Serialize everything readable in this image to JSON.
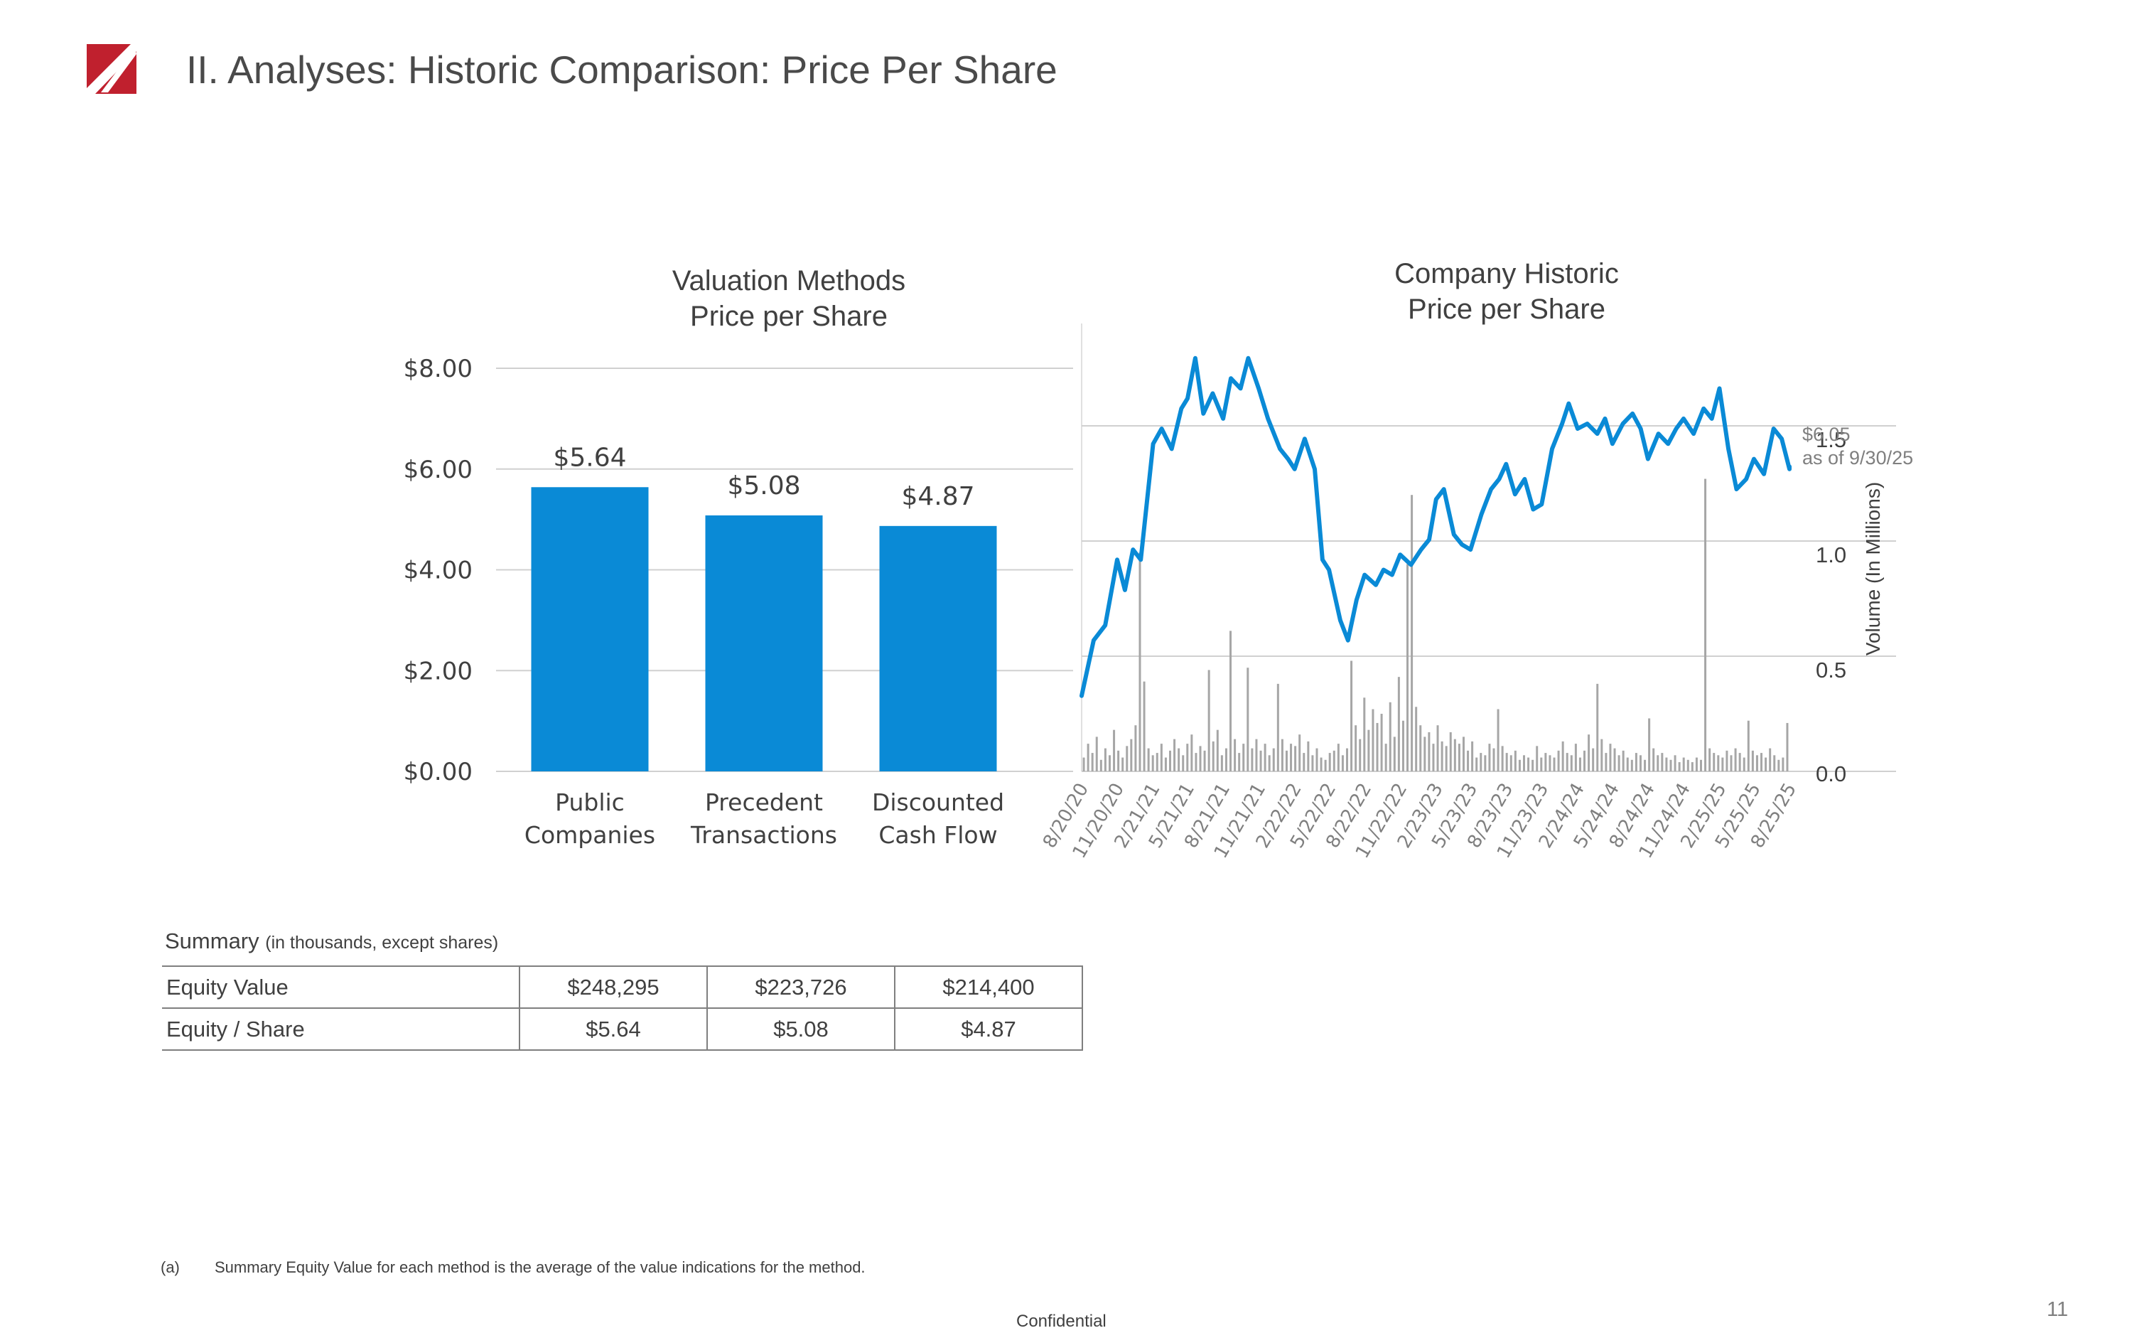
{
  "header": {
    "title": "II. Analyses: Historic Comparison: Price Per Share",
    "logo_icon": "red-triangle-logo",
    "brand_color": "#c0202e"
  },
  "chart_data": [
    {
      "type": "bar",
      "title_lines": [
        "Valuation Methods",
        "Price per Share"
      ],
      "categories": [
        [
          "Public",
          "Companies"
        ],
        [
          "Precedent",
          "Transactions"
        ],
        [
          "Discounted",
          "Cash Flow"
        ]
      ],
      "values": [
        5.64,
        5.08,
        4.87
      ],
      "data_labels": [
        "$5.64",
        "$5.08",
        "$4.87"
      ],
      "ylim": [
        0,
        8
      ],
      "yticks": [
        0,
        2,
        4,
        6,
        8
      ],
      "ytick_labels": [
        "$0.00",
        "$2.00",
        "$4.00",
        "$6.00",
        "$8.00"
      ],
      "bar_color": "#0a8ad6",
      "grid": true
    },
    {
      "type": "line",
      "title_lines": [
        "Company Historic",
        "Price per Share"
      ],
      "x_tick_labels": [
        "8/20/20",
        "11/20/20",
        "2/21/21",
        "5/21/21",
        "8/21/21",
        "11/21/21",
        "2/22/22",
        "5/22/22",
        "8/22/22",
        "11/22/22",
        "2/23/23",
        "5/23/23",
        "8/23/23",
        "11/23/23",
        "2/24/24",
        "5/24/24",
        "8/24/24",
        "11/24/24",
        "2/25/25",
        "5/25/25",
        "8/25/25"
      ],
      "price_series": {
        "color": "#0a8ad6",
        "ylim": [
          0,
          8
        ],
        "points": [
          [
            "8/20/20",
            1.5
          ],
          [
            "9/20/20",
            2.6
          ],
          [
            "10/20/20",
            2.9
          ],
          [
            "11/20/20",
            4.2
          ],
          [
            "12/10/20",
            3.6
          ],
          [
            "12/31/20",
            4.4
          ],
          [
            "1/20/21",
            4.2
          ],
          [
            "2/21/21",
            6.5
          ],
          [
            "3/15/21",
            6.8
          ],
          [
            "4/10/21",
            6.4
          ],
          [
            "5/5/21",
            7.2
          ],
          [
            "5/21/21",
            7.4
          ],
          [
            "6/10/21",
            8.2
          ],
          [
            "7/1/21",
            7.1
          ],
          [
            "7/25/21",
            7.5
          ],
          [
            "8/21/21",
            7.0
          ],
          [
            "9/10/21",
            7.8
          ],
          [
            "10/5/21",
            7.6
          ],
          [
            "10/25/21",
            8.2
          ],
          [
            "11/21/21",
            7.6
          ],
          [
            "12/15/21",
            7.0
          ],
          [
            "1/15/22",
            6.4
          ],
          [
            "2/5/22",
            6.2
          ],
          [
            "2/22/22",
            6.0
          ],
          [
            "3/20/22",
            6.6
          ],
          [
            "4/15/22",
            6.0
          ],
          [
            "5/5/22",
            4.2
          ],
          [
            "5/22/22",
            4.0
          ],
          [
            "6/20/22",
            3.0
          ],
          [
            "7/10/22",
            2.6
          ],
          [
            "8/1/22",
            3.4
          ],
          [
            "8/22/22",
            3.9
          ],
          [
            "9/20/22",
            3.7
          ],
          [
            "10/10/22",
            4.0
          ],
          [
            "11/1/22",
            3.9
          ],
          [
            "11/22/22",
            4.3
          ],
          [
            "12/20/22",
            4.1
          ],
          [
            "1/15/23",
            4.4
          ],
          [
            "2/5/23",
            4.6
          ],
          [
            "2/23/23",
            5.4
          ],
          [
            "3/15/23",
            5.6
          ],
          [
            "4/10/23",
            4.7
          ],
          [
            "5/1/23",
            4.5
          ],
          [
            "5/23/23",
            4.4
          ],
          [
            "6/20/23",
            5.1
          ],
          [
            "7/15/23",
            5.6
          ],
          [
            "8/5/23",
            5.8
          ],
          [
            "8/23/23",
            6.1
          ],
          [
            "9/15/23",
            5.5
          ],
          [
            "10/10/23",
            5.8
          ],
          [
            "11/1/23",
            5.2
          ],
          [
            "11/23/23",
            5.3
          ],
          [
            "12/20/23",
            6.4
          ],
          [
            "1/15/24",
            6.9
          ],
          [
            "2/1/24",
            7.3
          ],
          [
            "2/24/24",
            6.8
          ],
          [
            "3/20/24",
            6.9
          ],
          [
            "4/15/24",
            6.7
          ],
          [
            "5/5/24",
            7.0
          ],
          [
            "5/24/24",
            6.5
          ],
          [
            "6/20/24",
            6.9
          ],
          [
            "7/15/24",
            7.1
          ],
          [
            "8/5/24",
            6.8
          ],
          [
            "8/24/24",
            6.2
          ],
          [
            "9/20/24",
            6.7
          ],
          [
            "10/15/24",
            6.5
          ],
          [
            "11/5/24",
            6.8
          ],
          [
            "11/24/24",
            7.0
          ],
          [
            "12/20/24",
            6.7
          ],
          [
            "1/15/25",
            7.2
          ],
          [
            "2/5/25",
            7.0
          ],
          [
            "2/25/25",
            7.6
          ],
          [
            "3/20/25",
            6.4
          ],
          [
            "4/10/25",
            5.6
          ],
          [
            "5/5/25",
            5.8
          ],
          [
            "5/25/25",
            6.2
          ],
          [
            "6/20/25",
            5.9
          ],
          [
            "7/15/25",
            6.8
          ],
          [
            "8/5/25",
            6.6
          ],
          [
            "8/25/25",
            6.0
          ],
          [
            "9/30/25",
            6.05
          ]
        ]
      },
      "volume_series": {
        "color": "#a6a6a6",
        "ylabel": "Volume (In Millions)",
        "ylim": [
          0,
          1.75
        ],
        "yticks": [
          0,
          0.5,
          1.0,
          1.5
        ],
        "ytick_labels": [
          "0.0",
          "0.5",
          "1.0",
          "1.5"
        ],
        "values": [
          0.06,
          0.12,
          0.08,
          0.15,
          0.05,
          0.1,
          0.07,
          0.18,
          0.09,
          0.06,
          0.11,
          0.14,
          0.2,
          0.95,
          0.39,
          0.1,
          0.07,
          0.08,
          0.12,
          0.06,
          0.09,
          0.14,
          0.1,
          0.07,
          0.12,
          0.16,
          0.08,
          0.11,
          0.09,
          0.44,
          0.13,
          0.18,
          0.07,
          0.1,
          0.61,
          0.14,
          0.08,
          0.12,
          0.45,
          0.1,
          0.14,
          0.09,
          0.12,
          0.07,
          0.1,
          0.38,
          0.14,
          0.09,
          0.12,
          0.11,
          0.16,
          0.08,
          0.13,
          0.07,
          0.1,
          0.06,
          0.05,
          0.08,
          0.09,
          0.12,
          0.07,
          0.1,
          0.48,
          0.2,
          0.14,
          0.32,
          0.18,
          0.27,
          0.21,
          0.25,
          0.12,
          0.3,
          0.15,
          0.41,
          0.22,
          0.9,
          1.2,
          0.28,
          0.2,
          0.15,
          0.17,
          0.12,
          0.2,
          0.13,
          0.11,
          0.17,
          0.14,
          0.12,
          0.15,
          0.09,
          0.13,
          0.06,
          0.08,
          0.07,
          0.12,
          0.1,
          0.27,
          0.11,
          0.08,
          0.07,
          0.09,
          0.05,
          0.07,
          0.06,
          0.05,
          0.11,
          0.06,
          0.08,
          0.07,
          0.06,
          0.09,
          0.13,
          0.08,
          0.07,
          0.12,
          0.06,
          0.09,
          0.16,
          0.1,
          0.38,
          0.14,
          0.08,
          0.12,
          0.1,
          0.07,
          0.09,
          0.06,
          0.05,
          0.08,
          0.07,
          0.05,
          0.23,
          0.1,
          0.07,
          0.08,
          0.06,
          0.05,
          0.07,
          0.04,
          0.06,
          0.05,
          0.04,
          0.06,
          0.05,
          1.27,
          0.1,
          0.08,
          0.07,
          0.06,
          0.09,
          0.07,
          0.1,
          0.08,
          0.06,
          0.22,
          0.09,
          0.07,
          0.08,
          0.06,
          0.1,
          0.07,
          0.05,
          0.06,
          0.21
        ]
      },
      "annotation_lines": [
        "$6.05",
        "as of 9/30/25"
      ],
      "grid": true
    }
  ],
  "summary": {
    "caption_main": "Summary",
    "caption_sub": "(in thousands, except shares)",
    "rows": [
      {
        "label": "Equity Value",
        "values": [
          "$248,295",
          "$223,726",
          "$214,400"
        ]
      },
      {
        "label": "Equity / Share",
        "values": [
          "$5.64",
          "$5.08",
          "$4.87"
        ]
      }
    ]
  },
  "footer": {
    "footnote_mark": "(a)",
    "footnote_text": "Summary Equity Value for each method is the average of the value indications for the method.",
    "confidential": "Confidential",
    "page_number": "11"
  }
}
